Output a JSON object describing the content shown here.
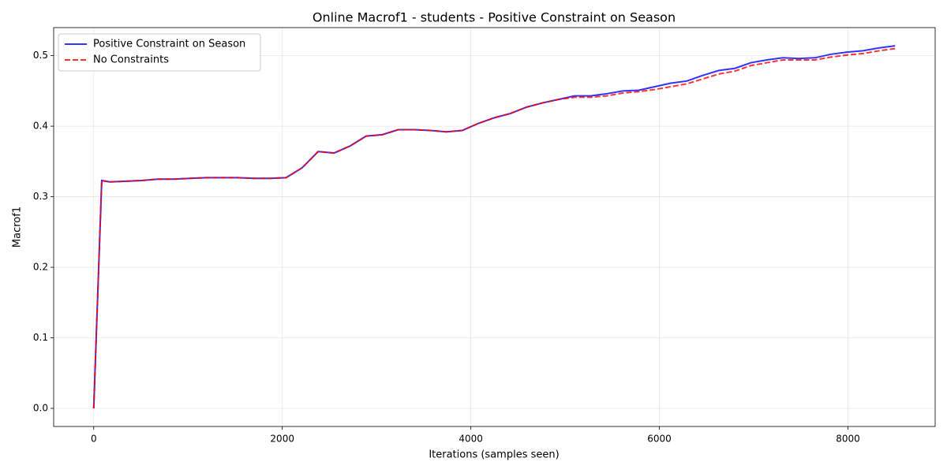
{
  "chart_data": {
    "type": "line",
    "title": "Online Macrof1 - students - Positive Constraint on Season",
    "xlabel": "Iterations (samples seen)",
    "ylabel": "Macrof1",
    "x": [
      0,
      85,
      170,
      340,
      510,
      680,
      850,
      1020,
      1190,
      1360,
      1530,
      1700,
      1870,
      2040,
      2210,
      2380,
      2550,
      2720,
      2890,
      3060,
      3230,
      3400,
      3570,
      3740,
      3910,
      4080,
      4250,
      4420,
      4590,
      4760,
      4930,
      5100,
      5270,
      5440,
      5610,
      5780,
      5950,
      6120,
      6290,
      6460,
      6630,
      6800,
      6970,
      7140,
      7310,
      7480,
      7650,
      7820,
      7990,
      8160,
      8330,
      8500
    ],
    "series": [
      {
        "name": "Positive Constraint on Season",
        "color": "#0000ff",
        "linestyle": "solid",
        "values": [
          0,
          0.323,
          0.321,
          0.322,
          0.323,
          0.325,
          0.325,
          0.326,
          0.327,
          0.327,
          0.327,
          0.326,
          0.326,
          0.327,
          0.341,
          0.364,
          0.362,
          0.372,
          0.386,
          0.388,
          0.395,
          0.395,
          0.394,
          0.392,
          0.394,
          0.404,
          0.412,
          0.418,
          0.427,
          0.433,
          0.438,
          0.443,
          0.443,
          0.446,
          0.45,
          0.451,
          0.456,
          0.461,
          0.464,
          0.472,
          0.479,
          0.482,
          0.49,
          0.494,
          0.497,
          0.496,
          0.497,
          0.502,
          0.505,
          0.507,
          0.511,
          0.514
        ]
      },
      {
        "name": "No Constraints",
        "color": "#ff0000",
        "linestyle": "dashed",
        "values": [
          0,
          0.323,
          0.321,
          0.322,
          0.323,
          0.325,
          0.325,
          0.326,
          0.327,
          0.327,
          0.327,
          0.326,
          0.326,
          0.327,
          0.341,
          0.364,
          0.362,
          0.372,
          0.386,
          0.388,
          0.395,
          0.395,
          0.394,
          0.392,
          0.394,
          0.404,
          0.412,
          0.418,
          0.427,
          0.433,
          0.438,
          0.441,
          0.441,
          0.443,
          0.447,
          0.449,
          0.452,
          0.456,
          0.46,
          0.467,
          0.474,
          0.478,
          0.486,
          0.49,
          0.494,
          0.494,
          0.494,
          0.498,
          0.501,
          0.503,
          0.507,
          0.51
        ]
      }
    ],
    "xlim": [
      -425,
      8925
    ],
    "xticks": [
      0,
      2000,
      4000,
      6000,
      8000
    ],
    "ylim": [
      -0.0257,
      0.5398
    ],
    "yticks": [
      {
        "value": 0,
        "label": "0.0"
      },
      0.1,
      0.2,
      0.3,
      0.4,
      0.5
    ],
    "grid": true,
    "legend": "upper left"
  }
}
